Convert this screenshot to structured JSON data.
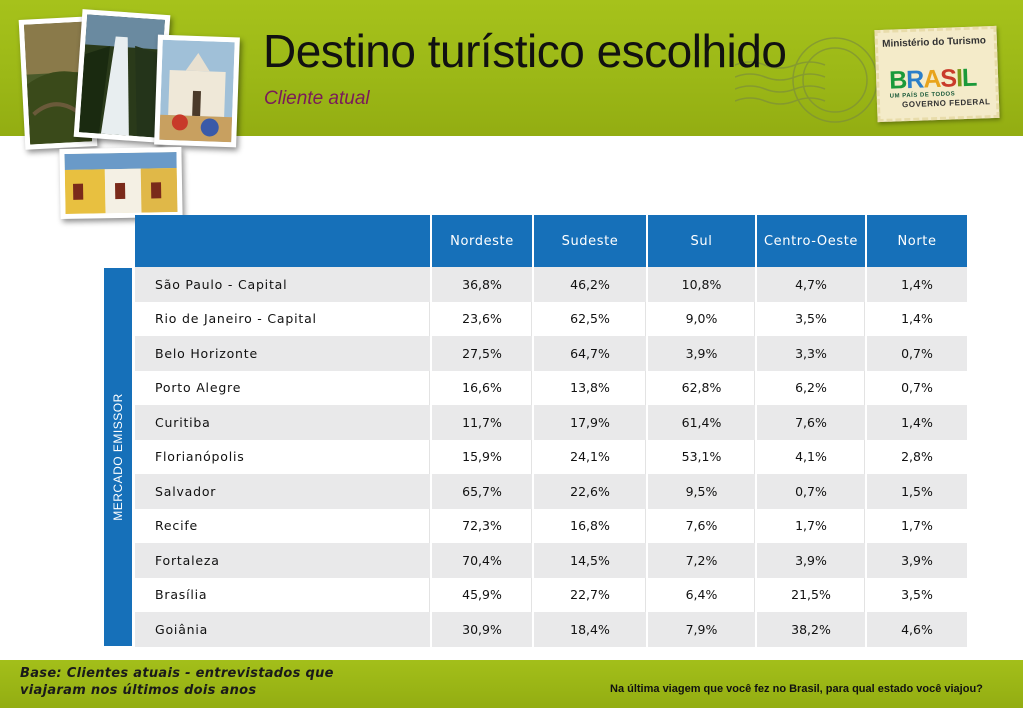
{
  "header": {
    "title": "Destino turístico escolhido",
    "subtitle": "Cliente atual"
  },
  "logo": {
    "ministry": "Ministério do Turismo",
    "brand": "BRASIL",
    "tagline": "UM PAÍS DE TODOS",
    "government": "GOVERNO FEDERAL"
  },
  "table": {
    "side_label": "MERCADO EMISSOR",
    "columns": [
      "Nordeste",
      "Sudeste",
      "Sul",
      "Centro-Oeste",
      "Norte"
    ],
    "rows": [
      {
        "city": "São Paulo - Capital",
        "values": [
          "36,8%",
          "46,2%",
          "10,8%",
          "4,7%",
          "1,4%"
        ]
      },
      {
        "city": "Rio de Janeiro - Capital",
        "values": [
          "23,6%",
          "62,5%",
          "9,0%",
          "3,5%",
          "1,4%"
        ]
      },
      {
        "city": "Belo Horizonte",
        "values": [
          "27,5%",
          "64,7%",
          "3,9%",
          "3,3%",
          "0,7%"
        ]
      },
      {
        "city": "Porto Alegre",
        "values": [
          "16,6%",
          "13,8%",
          "62,8%",
          "6,2%",
          "0,7%"
        ]
      },
      {
        "city": "Curitiba",
        "values": [
          "11,7%",
          "17,9%",
          "61,4%",
          "7,6%",
          "1,4%"
        ]
      },
      {
        "city": "Florianópolis",
        "values": [
          "15,9%",
          "24,1%",
          "53,1%",
          "4,1%",
          "2,8%"
        ]
      },
      {
        "city": "Salvador",
        "values": [
          "65,7%",
          "22,6%",
          "9,5%",
          "0,7%",
          "1,5%"
        ]
      },
      {
        "city": "Recife",
        "values": [
          "72,3%",
          "16,8%",
          "7,6%",
          "1,7%",
          "1,7%"
        ]
      },
      {
        "city": "Fortaleza",
        "values": [
          "70,4%",
          "14,5%",
          "7,2%",
          "3,9%",
          "3,9%"
        ]
      },
      {
        "city": "Brasília",
        "values": [
          "45,9%",
          "22,7%",
          "6,4%",
          "21,5%",
          "3,5%"
        ]
      },
      {
        "city": "Goiânia",
        "values": [
          "30,9%",
          "18,4%",
          "7,9%",
          "38,2%",
          "4,6%"
        ]
      }
    ]
  },
  "footer": {
    "base_line1": "Base: Clientes atuais - entrevistados que",
    "base_line2": "viajaram nos últimos dois anos",
    "question": "Na última viagem que você fez no Brasil, para qual estado você viajou?"
  },
  "colors": {
    "header_green": "#9cb817",
    "table_blue": "#1670b9",
    "subtitle_purple": "#7a1a5a",
    "row_shade": "#e9e9ea"
  }
}
